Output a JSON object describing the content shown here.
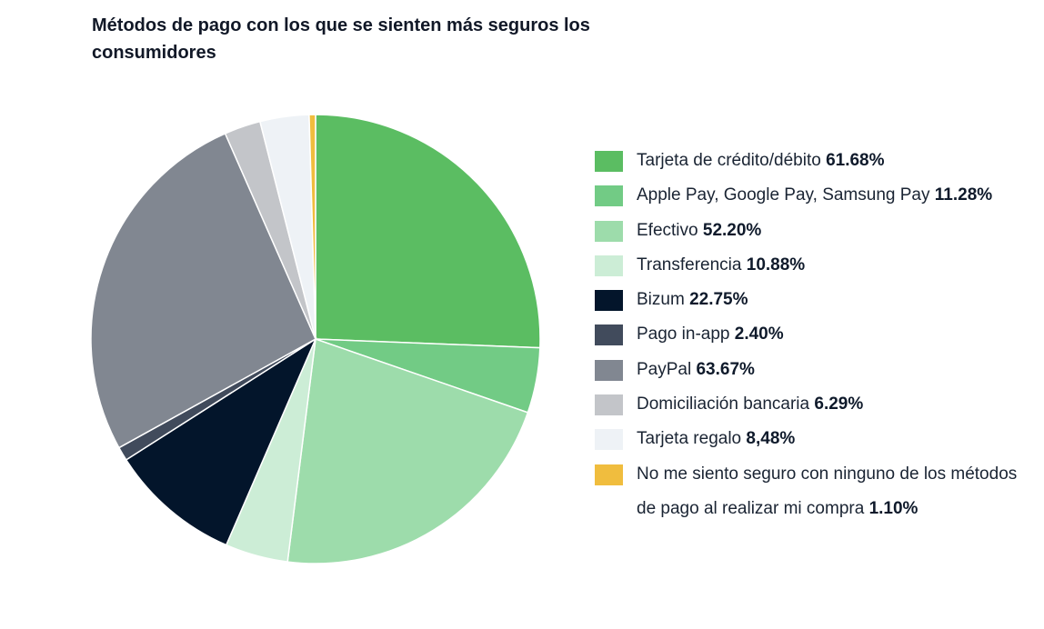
{
  "chart_data": {
    "type": "pie",
    "title": "Métodos de pago con los que se sienten más seguros los consumidores",
    "slices": [
      {
        "label": "Tarjeta de crédito/débito",
        "value": 61.68,
        "value_label": "61.68%",
        "color": "#5bbd62"
      },
      {
        "label": "Apple Pay, Google Pay, Samsung Pay",
        "value": 11.28,
        "value_label": "11.28%",
        "color": "#72cb85"
      },
      {
        "label": "Efectivo",
        "value": 52.2,
        "value_label": "52.20%",
        "color": "#9ddcab"
      },
      {
        "label": "Transferencia",
        "value": 10.88,
        "value_label": "10.88%",
        "color": "#ccedd6"
      },
      {
        "label": "Bizum",
        "value": 22.75,
        "value_label": "22.75%",
        "color": "#03152b"
      },
      {
        "label": "Pago in-app",
        "value": 2.4,
        "value_label": "2.40%",
        "color": "#414b5c"
      },
      {
        "label": "PayPal",
        "value": 63.67,
        "value_label": "63.67%",
        "color": "#818791"
      },
      {
        "label": "Domiciliación bancaria",
        "value": 6.29,
        "value_label": "6.29%",
        "color": "#c3c5c9"
      },
      {
        "label": "Tarjeta regalo",
        "value": 8.48,
        "value_label": "8,48%",
        "color": "#eef2f6"
      },
      {
        "label": "No me siento seguro con ninguno de los métodos de pago al realizar mi compra",
        "value": 1.1,
        "value_label": "1.10%",
        "color": "#f0bd3e"
      }
    ],
    "legend_position": "right"
  }
}
